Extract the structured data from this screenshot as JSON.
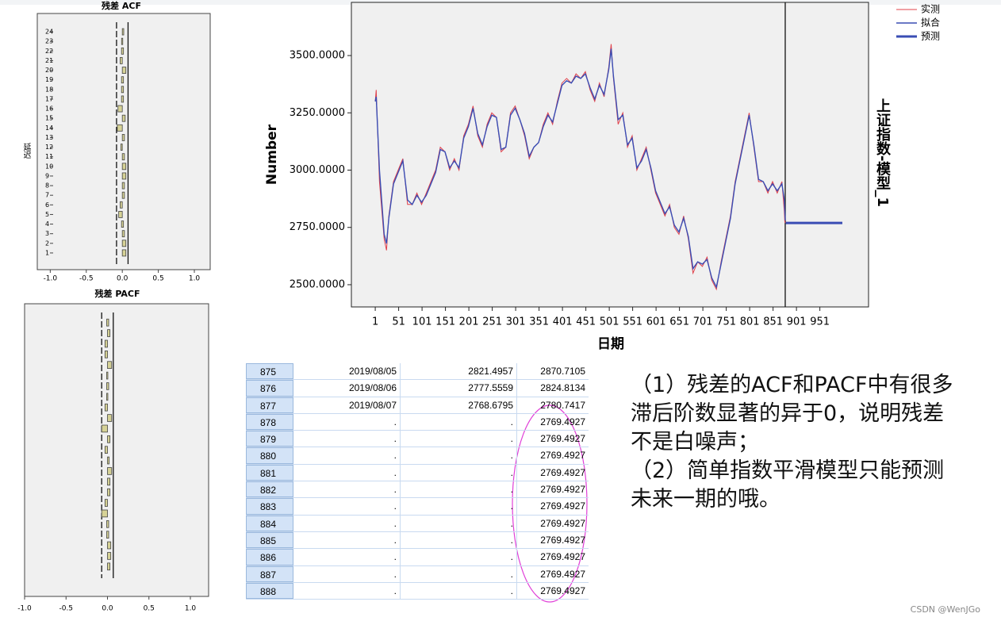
{
  "chart_data": [
    {
      "type": "bar",
      "orientation": "horizontal",
      "title": "残差 ACF",
      "ylabel": "延迟",
      "categories": [
        "1",
        "2",
        "3",
        "4",
        "5",
        "6",
        "7",
        "8",
        "9",
        "10",
        "11",
        "12",
        "13",
        "14",
        "15",
        "16",
        "17",
        "18",
        "19",
        "20",
        "21",
        "22",
        "23",
        "24"
      ],
      "values": [
        0.05,
        0.05,
        0.03,
        0.0,
        -0.05,
        -0.03,
        0.03,
        0.03,
        0.05,
        0.05,
        0.03,
        -0.02,
        0.03,
        -0.07,
        0.04,
        -0.06,
        0.0,
        0.0,
        0.0,
        0.05,
        -0.03,
        0.0,
        -0.01,
        0.02
      ],
      "confidence_limits": [
        -0.08,
        0.08
      ],
      "color": "#d6d296",
      "xlim": [
        -1.18,
        1.22
      ],
      "xticks": [
        {
          "value": -1,
          "label": "-1.0"
        },
        {
          "value": -0.5,
          "label": "-0.5"
        },
        {
          "value": 0,
          "label": "0.0"
        },
        {
          "value": 0.5,
          "label": "0.5"
        },
        {
          "value": 1,
          "label": "1.0"
        }
      ]
    },
    {
      "type": "bar",
      "orientation": "horizontal",
      "title": "残差 PACF",
      "categories": [
        null,
        null,
        null,
        null,
        null,
        null,
        null,
        null,
        null,
        null,
        null,
        null,
        null,
        null,
        null,
        null,
        null,
        null,
        null,
        null,
        null,
        null,
        null,
        null
      ],
      "values": [
        0.03,
        0.04,
        0.04,
        0.0,
        0.0,
        -0.07,
        -0.03,
        0.03,
        0.03,
        0.05,
        0.02,
        -0.03,
        0.03,
        -0.07,
        0.05,
        -0.03,
        -0.01,
        0.0,
        -0.01,
        0.05,
        -0.03,
        -0.03,
        0.03,
        0.0
      ],
      "confidence_limits": [
        -0.07,
        0.07
      ],
      "color": "#d6d296",
      "xlim": [
        -1,
        1.22
      ],
      "xticks": [
        {
          "value": -1,
          "label": "-1.0"
        },
        {
          "value": -0.5,
          "label": "-0.5"
        },
        {
          "value": 0,
          "label": "0.0"
        },
        {
          "value": 0.5,
          "label": "0.5"
        },
        {
          "value": 1,
          "label": "1.0"
        }
      ]
    },
    {
      "type": "line",
      "xlabel": "日期",
      "ylabel": "Number",
      "side_label": "上证指数-模型_1",
      "xlim": [
        -50,
        1055
      ],
      "ylim": [
        2403,
        3732
      ],
      "xticks": [
        1,
        51,
        101,
        151,
        201,
        251,
        301,
        351,
        401,
        451,
        501,
        551,
        601,
        651,
        701,
        751,
        801,
        851,
        901,
        951
      ],
      "yticks": [
        {
          "value": 2500,
          "label": "2500.0000"
        },
        {
          "value": 2750,
          "label": "2750.0000"
        },
        {
          "value": 3000,
          "label": "3000.0000"
        },
        {
          "value": 3250,
          "label": "3250.0000"
        },
        {
          "value": 3500,
          "label": "3500.0000"
        }
      ],
      "series": [
        {
          "name": "实测",
          "color": "#e0404a",
          "width": 1,
          "x": [
            1,
            3,
            10,
            20,
            25,
            30,
            40,
            50,
            60,
            70,
            80,
            90,
            100,
            110,
            120,
            130,
            140,
            150,
            160,
            170,
            180,
            190,
            200,
            210,
            220,
            230,
            240,
            250,
            260,
            270,
            280,
            290,
            300,
            310,
            320,
            330,
            340,
            350,
            360,
            370,
            380,
            390,
            400,
            410,
            420,
            430,
            440,
            450,
            460,
            470,
            480,
            490,
            500,
            505,
            510,
            520,
            530,
            540,
            550,
            560,
            570,
            580,
            590,
            600,
            610,
            620,
            630,
            640,
            650,
            660,
            670,
            680,
            690,
            700,
            710,
            720,
            730,
            740,
            750,
            760,
            770,
            780,
            790,
            800,
            810,
            820,
            830,
            840,
            850,
            860,
            870,
            875,
            876,
            877
          ],
          "values": [
            3300,
            3350,
            2950,
            2700,
            2650,
            2800,
            2950,
            3000,
            3050,
            2850,
            2850,
            2900,
            2850,
            2900,
            2950,
            3000,
            3100,
            3080,
            3000,
            3050,
            3000,
            3150,
            3200,
            3280,
            3150,
            3100,
            3200,
            3250,
            3230,
            3080,
            3100,
            3250,
            3280,
            3220,
            3150,
            3050,
            3100,
            3120,
            3200,
            3250,
            3200,
            3300,
            3380,
            3400,
            3380,
            3420,
            3400,
            3430,
            3350,
            3300,
            3380,
            3320,
            3450,
            3550,
            3400,
            3200,
            3250,
            3100,
            3150,
            3000,
            3050,
            3100,
            3000,
            2900,
            2850,
            2800,
            2850,
            2750,
            2720,
            2800,
            2700,
            2550,
            2600,
            2580,
            2620,
            2520,
            2480,
            2600,
            2700,
            2800,
            2950,
            3050,
            3150,
            3250,
            3100,
            2950,
            2950,
            2900,
            2950,
            2900,
            2950,
            2821.4957,
            2777.5559,
            2768.6795
          ]
        },
        {
          "name": "拟合",
          "color": "#3a4db4",
          "width": 1.4,
          "x": [
            1,
            3,
            10,
            20,
            25,
            30,
            40,
            50,
            60,
            70,
            80,
            90,
            100,
            110,
            120,
            130,
            140,
            150,
            160,
            170,
            180,
            190,
            200,
            210,
            220,
            230,
            240,
            250,
            260,
            270,
            280,
            290,
            300,
            310,
            320,
            330,
            340,
            350,
            360,
            370,
            380,
            390,
            400,
            410,
            420,
            430,
            440,
            450,
            460,
            470,
            480,
            490,
            500,
            505,
            510,
            520,
            530,
            540,
            550,
            560,
            570,
            580,
            590,
            600,
            610,
            620,
            630,
            640,
            650,
            660,
            670,
            680,
            690,
            700,
            710,
            720,
            730,
            740,
            750,
            760,
            770,
            780,
            790,
            800,
            810,
            820,
            830,
            840,
            850,
            860,
            870,
            875,
            876,
            877
          ],
          "values": [
            3300,
            3320,
            3000,
            2720,
            2680,
            2790,
            2940,
            2990,
            3040,
            2870,
            2850,
            2890,
            2860,
            2890,
            2940,
            2990,
            3090,
            3080,
            3010,
            3040,
            3010,
            3140,
            3190,
            3270,
            3160,
            3110,
            3190,
            3240,
            3230,
            3090,
            3100,
            3240,
            3270,
            3220,
            3160,
            3060,
            3100,
            3120,
            3190,
            3240,
            3210,
            3290,
            3370,
            3390,
            3380,
            3410,
            3400,
            3420,
            3360,
            3310,
            3370,
            3330,
            3440,
            3530,
            3410,
            3220,
            3240,
            3110,
            3140,
            3010,
            3040,
            3090,
            3010,
            2910,
            2860,
            2810,
            2840,
            2760,
            2730,
            2790,
            2710,
            2570,
            2600,
            2590,
            2610,
            2530,
            2490,
            2590,
            2690,
            2790,
            2940,
            3040,
            3140,
            3240,
            3110,
            2960,
            2950,
            2910,
            2940,
            2910,
            2940,
            2870.7105,
            2824.8134,
            2780.7417
          ]
        },
        {
          "name": "预测",
          "color": "#3a4db4",
          "width": 3,
          "x": [
            878,
            999
          ],
          "values": [
            2769.4927,
            2769.4927
          ]
        }
      ]
    }
  ],
  "table": {
    "rows": [
      [
        "875",
        "2019/08/05",
        "2821.4957",
        "2870.7105"
      ],
      [
        "876",
        "2019/08/06",
        "2777.5559",
        "2824.8134"
      ],
      [
        "877",
        "2019/08/07",
        "2768.6795",
        "2780.7417"
      ],
      [
        "878",
        ".",
        ".",
        "2769.4927"
      ],
      [
        "879",
        ".",
        ".",
        "2769.4927"
      ],
      [
        "880",
        ".",
        ".",
        "2769.4927"
      ],
      [
        "881",
        ".",
        ".",
        "2769.4927"
      ],
      [
        "882",
        ".",
        ".",
        "2769.4927"
      ],
      [
        "883",
        ".",
        ".",
        "2769.4927"
      ],
      [
        "884",
        ".",
        ".",
        "2769.4927"
      ],
      [
        "885",
        ".",
        ".",
        "2769.4927"
      ],
      [
        "886",
        ".",
        ".",
        "2769.4927"
      ],
      [
        "887",
        ".",
        ".",
        "2769.4927"
      ],
      [
        "888",
        ".",
        ".",
        "2769.4927"
      ]
    ]
  },
  "notes": [
    "（1）残差的ACF和PACF中有很多滞后阶数显著的异于0，说明残差不是白噪声；",
    "（2）简单指数平滑模型只能预测未来一期的哦。"
  ],
  "watermark": "CSDN @WenJGo"
}
